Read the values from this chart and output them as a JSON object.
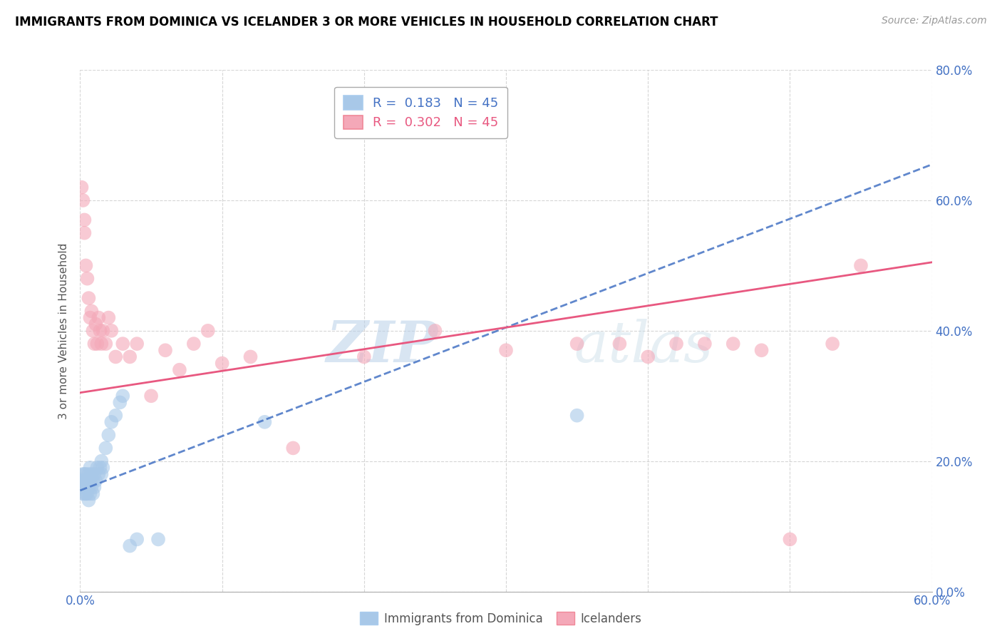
{
  "title": "IMMIGRANTS FROM DOMINICA VS ICELANDER 3 OR MORE VEHICLES IN HOUSEHOLD CORRELATION CHART",
  "source": "Source: ZipAtlas.com",
  "ylabel": "3 or more Vehicles in Household",
  "xlim": [
    0.0,
    0.6
  ],
  "ylim": [
    0.0,
    0.8
  ],
  "xticks": [
    0.0,
    0.1,
    0.2,
    0.3,
    0.4,
    0.5,
    0.6
  ],
  "yticks": [
    0.0,
    0.2,
    0.4,
    0.6,
    0.8
  ],
  "xticklabels": [
    "0.0%",
    "",
    "",
    "",
    "",
    "",
    "60.0%"
  ],
  "yticklabels_right": [
    "0.0%",
    "20.0%",
    "40.0%",
    "60.0%",
    "80.0%"
  ],
  "blue_label": "Immigrants from Dominica",
  "pink_label": "Icelanders",
  "blue_R": "0.183",
  "blue_N": "45",
  "pink_R": "0.302",
  "pink_N": "45",
  "blue_color": "#a8c8e8",
  "pink_color": "#f4a8b8",
  "blue_line_color": "#4472c4",
  "pink_line_color": "#e85880",
  "watermark_zip": "ZIP",
  "watermark_atlas": "atlas",
  "blue_x": [
    0.001,
    0.001,
    0.002,
    0.002,
    0.002,
    0.003,
    0.003,
    0.003,
    0.003,
    0.004,
    0.004,
    0.004,
    0.005,
    0.005,
    0.005,
    0.006,
    0.006,
    0.006,
    0.007,
    0.007,
    0.007,
    0.008,
    0.008,
    0.009,
    0.009,
    0.01,
    0.01,
    0.011,
    0.012,
    0.013,
    0.014,
    0.015,
    0.015,
    0.016,
    0.018,
    0.02,
    0.022,
    0.025,
    0.028,
    0.03,
    0.035,
    0.04,
    0.055,
    0.13,
    0.35
  ],
  "blue_y": [
    0.15,
    0.17,
    0.16,
    0.18,
    0.17,
    0.15,
    0.16,
    0.17,
    0.18,
    0.15,
    0.16,
    0.18,
    0.15,
    0.16,
    0.17,
    0.14,
    0.16,
    0.18,
    0.15,
    0.17,
    0.19,
    0.16,
    0.18,
    0.15,
    0.17,
    0.16,
    0.18,
    0.17,
    0.19,
    0.18,
    0.19,
    0.2,
    0.18,
    0.19,
    0.22,
    0.24,
    0.26,
    0.27,
    0.29,
    0.3,
    0.07,
    0.08,
    0.08,
    0.26,
    0.27
  ],
  "pink_x": [
    0.001,
    0.002,
    0.003,
    0.003,
    0.004,
    0.005,
    0.006,
    0.007,
    0.008,
    0.009,
    0.01,
    0.011,
    0.012,
    0.013,
    0.014,
    0.015,
    0.016,
    0.018,
    0.02,
    0.022,
    0.025,
    0.03,
    0.035,
    0.04,
    0.05,
    0.06,
    0.07,
    0.08,
    0.09,
    0.1,
    0.12,
    0.15,
    0.2,
    0.25,
    0.3,
    0.35,
    0.38,
    0.4,
    0.42,
    0.44,
    0.46,
    0.48,
    0.5,
    0.53,
    0.55
  ],
  "pink_y": [
    0.62,
    0.6,
    0.55,
    0.57,
    0.5,
    0.48,
    0.45,
    0.42,
    0.43,
    0.4,
    0.38,
    0.41,
    0.38,
    0.42,
    0.4,
    0.38,
    0.4,
    0.38,
    0.42,
    0.4,
    0.36,
    0.38,
    0.36,
    0.38,
    0.3,
    0.37,
    0.34,
    0.38,
    0.4,
    0.35,
    0.36,
    0.22,
    0.36,
    0.4,
    0.37,
    0.38,
    0.38,
    0.36,
    0.38,
    0.38,
    0.38,
    0.37,
    0.08,
    0.38,
    0.5
  ],
  "blue_trend_x0": 0.0,
  "blue_trend_x1": 0.6,
  "blue_trend_y0": 0.155,
  "blue_trend_y1": 0.655,
  "pink_trend_x0": 0.0,
  "pink_trend_x1": 0.6,
  "pink_trend_y0": 0.305,
  "pink_trend_y1": 0.505
}
